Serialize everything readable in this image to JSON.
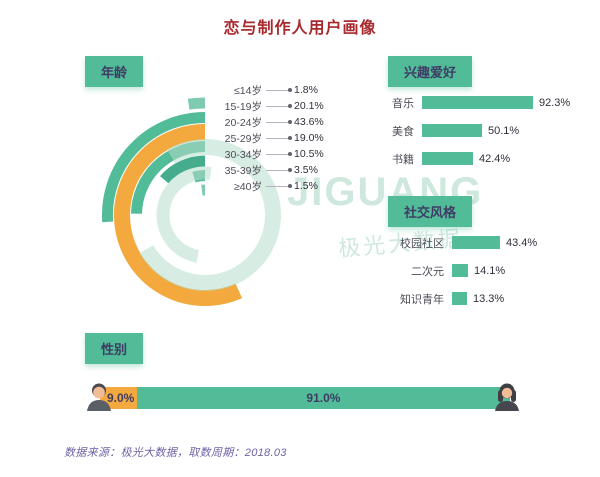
{
  "title": "恋与制作人用户画像",
  "footer": "数据来源：极光大数据，取数周期：2018.03",
  "watermark": {
    "text": "JIGUANG",
    "subtext": "极光大数据"
  },
  "colors": {
    "green": "#52bc99",
    "orange": "#f3a93d",
    "title_red": "#a8292e",
    "box_text": "#3e3c64",
    "footer_purple": "#6f63a8",
    "watermark": "#9fd2bd",
    "ring_colors": [
      "#7ecbb2",
      "#52bc99",
      "#f3a93d",
      "#52bc99",
      "#45ad8d",
      "#52bc99",
      "#7ecbb2"
    ]
  },
  "sections": {
    "age": {
      "label": "年龄"
    },
    "interests": {
      "label": "兴趣爱好"
    },
    "social": {
      "label": "社交风格"
    },
    "gender": {
      "label": "性别"
    }
  },
  "chart_data": [
    {
      "type": "radial-bar",
      "title": "年龄",
      "categories": [
        "≤14岁",
        "15-19岁",
        "20-24岁",
        "25-29岁",
        "30-34岁",
        "35-39岁",
        "≥40岁"
      ],
      "values": [
        1.8,
        20.1,
        43.6,
        19.0,
        10.5,
        3.5,
        1.5
      ],
      "unit": "%",
      "highlight_category": "20-24岁",
      "legend_position": "right"
    },
    {
      "type": "bar",
      "title": "兴趣爱好",
      "orientation": "horizontal",
      "categories": [
        "音乐",
        "美食",
        "书籍"
      ],
      "values": [
        92.3,
        50.1,
        42.4
      ],
      "unit": "%"
    },
    {
      "type": "bar",
      "title": "社交风格",
      "orientation": "horizontal",
      "categories": [
        "校园社区",
        "二次元",
        "知识青年"
      ],
      "values": [
        43.4,
        14.1,
        13.3
      ],
      "unit": "%"
    },
    {
      "type": "stacked-bar",
      "title": "性别",
      "categories": [
        "男",
        "女"
      ],
      "values": [
        9.0,
        91.0
      ],
      "unit": "%"
    }
  ]
}
